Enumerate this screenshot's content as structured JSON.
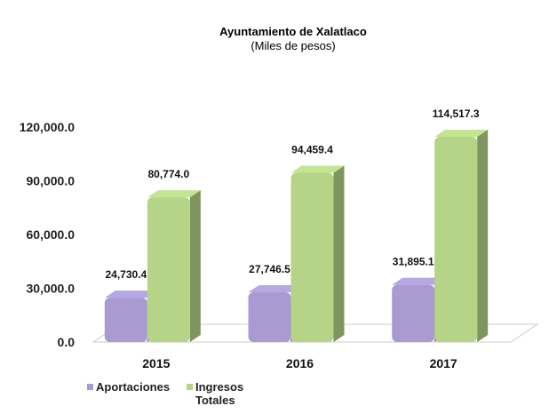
{
  "chart_data": {
    "type": "bar3d",
    "title": "Ayuntamiento de Xalatlaco",
    "subtitle": "(Miles de pesos)",
    "categories": [
      "2015",
      "2016",
      "2017"
    ],
    "series": [
      {
        "name": "Aportaciones",
        "color": "#a99bd2",
        "values": [
          24730.4,
          27746.5,
          31895.1
        ],
        "value_labels": [
          "24,730.4",
          "27,746.5",
          "31,895.1"
        ]
      },
      {
        "name": "Ingresos Totales",
        "color": "#b5d487",
        "values": [
          80774.0,
          94459.4,
          114517.3
        ],
        "value_labels": [
          "80,774.0",
          "94,459.4",
          "114,517.3"
        ]
      }
    ],
    "ylim": [
      0,
      120000
    ],
    "yticks": [
      {
        "value": 0,
        "label": "0.0"
      },
      {
        "value": 30000,
        "label": "30,000.0"
      },
      {
        "value": 60000,
        "label": "60,000.0"
      },
      {
        "value": 90000,
        "label": "90,000.0"
      },
      {
        "value": 120000,
        "label": "120,000.0"
      }
    ],
    "legend": "bottom-left"
  }
}
